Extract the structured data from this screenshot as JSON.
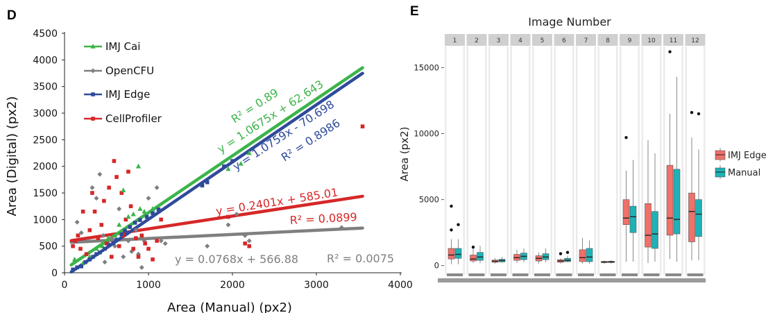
{
  "panel_d": {
    "letter": "D",
    "chart_data": {
      "type": "scatter",
      "xlabel": "Area (Manual) (px2)",
      "ylabel": "Area (Digital) (px2)",
      "xlim": [
        0,
        4000
      ],
      "ylim": [
        0,
        4500
      ],
      "x_ticks": [
        0,
        1000,
        2000,
        3000,
        4000
      ],
      "y_ticks": [
        0,
        500,
        1000,
        1500,
        2000,
        2500,
        3000,
        3500,
        4000,
        4500
      ],
      "legend_position": "top-left",
      "series": [
        {
          "name": "IMJ Cai",
          "color": "#3cb44a",
          "marker": "triangle",
          "points": [
            [
              120,
              250
            ],
            [
              220,
              180
            ],
            [
              300,
              300
            ],
            [
              380,
              450
            ],
            [
              450,
              500
            ],
            [
              520,
              650
            ],
            [
              600,
              700
            ],
            [
              650,
              900
            ],
            [
              700,
              1550
            ],
            [
              760,
              1050
            ],
            [
              820,
              1100
            ],
            [
              880,
              2000
            ],
            [
              900,
              1200
            ],
            [
              950,
              1150
            ],
            [
              1050,
              1200
            ],
            [
              1950,
              1950
            ],
            [
              2100,
              2050
            ],
            [
              2200,
              2250
            ]
          ],
          "fit": {
            "slope": 1.0675,
            "intercept": 62.643,
            "x_range": [
              80,
              3550
            ],
            "equation": "y = 1.0675x + 62.643",
            "r2": "R² = 0.89"
          }
        },
        {
          "name": "OpenCFU",
          "color": "#7f7f7f",
          "marker": "diamond",
          "points": [
            [
              150,
              950
            ],
            [
              200,
              750
            ],
            [
              280,
              600
            ],
            [
              330,
              1600
            ],
            [
              380,
              1400
            ],
            [
              420,
              1850
            ],
            [
              460,
              700
            ],
            [
              480,
              200
            ],
            [
              520,
              550
            ],
            [
              560,
              650
            ],
            [
              600,
              500
            ],
            [
              650,
              1200
            ],
            [
              700,
              300
            ],
            [
              760,
              600
            ],
            [
              800,
              400
            ],
            [
              850,
              800
            ],
            [
              880,
              350
            ],
            [
              920,
              100
            ],
            [
              950,
              600
            ],
            [
              1000,
              1400
            ],
            [
              1100,
              1600
            ],
            [
              1150,
              600
            ],
            [
              1200,
              550
            ],
            [
              1700,
              500
            ],
            [
              1950,
              900
            ],
            [
              2050,
              1100
            ],
            [
              2150,
              700
            ],
            [
              2200,
              600
            ],
            [
              3300,
              850
            ]
          ],
          "fit": {
            "slope": 0.0768,
            "intercept": 566.88,
            "x_range": [
              80,
              3550
            ],
            "equation": "y = 0.0768x + 566.88",
            "r2": "R² = 0.0075"
          }
        },
        {
          "name": "IMJ Edge",
          "color": "#2f4a9b",
          "marker": "square",
          "points": [
            [
              100,
              60
            ],
            [
              150,
              100
            ],
            [
              200,
              120
            ],
            [
              250,
              200
            ],
            [
              300,
              250
            ],
            [
              340,
              300
            ],
            [
              380,
              350
            ],
            [
              420,
              380
            ],
            [
              480,
              450
            ],
            [
              530,
              520
            ],
            [
              580,
              560
            ],
            [
              620,
              620
            ],
            [
              680,
              720
            ],
            [
              720,
              790
            ],
            [
              780,
              860
            ],
            [
              840,
              940
            ],
            [
              900,
              990
            ],
            [
              980,
              1050
            ],
            [
              1050,
              1120
            ],
            [
              1120,
              1190
            ],
            [
              1640,
              1640
            ],
            [
              1700,
              1700
            ],
            [
              1900,
              2000
            ],
            [
              2000,
              2100
            ]
          ],
          "fit": {
            "slope": 1.0759,
            "intercept": -70.698,
            "x_range": [
              80,
              3550
            ],
            "equation": "y = 1.0759x - 70.698",
            "r2": "R² = 0.8986"
          }
        },
        {
          "name": "CellProfiler",
          "color": "#d62728",
          "marker": "square",
          "points": [
            [
              100,
              500
            ],
            [
              130,
              600
            ],
            [
              160,
              700
            ],
            [
              190,
              450
            ],
            [
              220,
              1150
            ],
            [
              260,
              350
            ],
            [
              300,
              800
            ],
            [
              330,
              1500
            ],
            [
              360,
              1150
            ],
            [
              400,
              650
            ],
            [
              440,
              900
            ],
            [
              470,
              1350
            ],
            [
              500,
              550
            ],
            [
              530,
              1600
            ],
            [
              560,
              300
            ],
            [
              590,
              2100
            ],
            [
              620,
              1800
            ],
            [
              650,
              500
            ],
            [
              680,
              1500
            ],
            [
              700,
              700
            ],
            [
              730,
              1000
            ],
            [
              760,
              1900
            ],
            [
              790,
              1250
            ],
            [
              820,
              450
            ],
            [
              850,
              650
            ],
            [
              880,
              300
            ],
            [
              920,
              700
            ],
            [
              960,
              550
            ],
            [
              1000,
              450
            ],
            [
              1050,
              250
            ],
            [
              1100,
              600
            ],
            [
              1150,
              1000
            ],
            [
              1950,
              1050
            ],
            [
              2150,
              550
            ],
            [
              2200,
              500
            ],
            [
              3550,
              2750
            ]
          ],
          "fit": {
            "slope": 0.2401,
            "intercept": 585.01,
            "x_range": [
              80,
              3550
            ],
            "equation": "y = 0.2401x + 585.01",
            "r2": "R² = 0.0899"
          }
        }
      ]
    }
  },
  "panel_e": {
    "letter": "E",
    "chart_data": {
      "type": "box",
      "title": "Image Number",
      "ylabel": "Area (px2)",
      "ylim": [
        -700,
        16600
      ],
      "y_ticks": [
        0,
        5000,
        10000,
        15000
      ],
      "legend_position": "right",
      "legend_entries": [
        "IMJ Edge",
        "Manual"
      ],
      "colors": {
        "IMJ Edge": "#f0706a",
        "Manual": "#1eb2b6"
      },
      "facets": [
        {
          "label": "1",
          "imj": {
            "min": 100,
            "q1": 500,
            "median": 800,
            "q3": 1300,
            "max": 2000,
            "outliers": [
              2700,
              4500
            ]
          },
          "manual": {
            "min": 100,
            "q1": 550,
            "median": 850,
            "q3": 1300,
            "max": 2000,
            "outliers": [
              3100
            ]
          }
        },
        {
          "label": "2",
          "imj": {
            "min": 200,
            "q1": 350,
            "median": 500,
            "q3": 800,
            "max": 1300,
            "outliers": [
              1400
            ]
          },
          "manual": {
            "min": 200,
            "q1": 400,
            "median": 650,
            "q3": 1000,
            "max": 1500,
            "outliers": []
          }
        },
        {
          "label": "3",
          "imj": {
            "min": 150,
            "q1": 250,
            "median": 330,
            "q3": 420,
            "max": 550,
            "outliers": []
          },
          "manual": {
            "min": 200,
            "q1": 280,
            "median": 380,
            "q3": 480,
            "max": 650,
            "outliers": []
          }
        },
        {
          "label": "4",
          "imj": {
            "min": 200,
            "q1": 400,
            "median": 600,
            "q3": 850,
            "max": 1200,
            "outliers": []
          },
          "manual": {
            "min": 250,
            "q1": 450,
            "median": 700,
            "q3": 950,
            "max": 1300,
            "outliers": []
          }
        },
        {
          "label": "5",
          "imj": {
            "min": 150,
            "q1": 350,
            "median": 550,
            "q3": 750,
            "max": 1000,
            "outliers": []
          },
          "manual": {
            "min": 250,
            "q1": 450,
            "median": 650,
            "q3": 900,
            "max": 1300,
            "outliers": []
          }
        },
        {
          "label": "6",
          "imj": {
            "min": 150,
            "q1": 250,
            "median": 350,
            "q3": 450,
            "max": 550,
            "outliers": [
              900
            ]
          },
          "manual": {
            "min": 250,
            "q1": 300,
            "median": 400,
            "q3": 550,
            "max": 750,
            "outliers": [
              1000
            ]
          }
        },
        {
          "label": "7",
          "imj": {
            "min": 150,
            "q1": 300,
            "median": 600,
            "q3": 1200,
            "max": 2100,
            "outliers": []
          },
          "manual": {
            "min": 150,
            "q1": 300,
            "median": 650,
            "q3": 1300,
            "max": 1900,
            "outliers": []
          }
        },
        {
          "label": "8",
          "imj": {
            "min": 150,
            "q1": 220,
            "median": 270,
            "q3": 320,
            "max": 380,
            "outliers": []
          },
          "manual": {
            "min": 150,
            "q1": 230,
            "median": 280,
            "q3": 330,
            "max": 400,
            "outliers": []
          }
        },
        {
          "label": "9",
          "imj": {
            "min": 300,
            "q1": 3100,
            "median": 3600,
            "q3": 5000,
            "max": 7200,
            "outliers": [
              9700
            ]
          },
          "manual": {
            "min": 300,
            "q1": 2500,
            "median": 3700,
            "q3": 4500,
            "max": 8000,
            "outliers": []
          }
        },
        {
          "label": "10",
          "imj": {
            "min": 200,
            "q1": 1400,
            "median": 2300,
            "q3": 4700,
            "max": 9500,
            "outliers": []
          },
          "manual": {
            "min": 300,
            "q1": 1300,
            "median": 2400,
            "q3": 4100,
            "max": 8500,
            "outliers": []
          }
        },
        {
          "label": "11",
          "imj": {
            "min": 500,
            "q1": 2300,
            "median": 3600,
            "q3": 7600,
            "max": 11500,
            "outliers": [
              16200
            ]
          },
          "manual": {
            "min": 300,
            "q1": 2400,
            "median": 3500,
            "q3": 7300,
            "max": 14300,
            "outliers": []
          }
        },
        {
          "label": "12",
          "imj": {
            "min": 400,
            "q1": 1800,
            "median": 4100,
            "q3": 5500,
            "max": 9700,
            "outliers": [
              11600
            ]
          },
          "manual": {
            "min": 400,
            "q1": 2200,
            "median": 3900,
            "q3": 5000,
            "max": 8800,
            "outliers": [
              11500
            ]
          }
        }
      ]
    }
  }
}
